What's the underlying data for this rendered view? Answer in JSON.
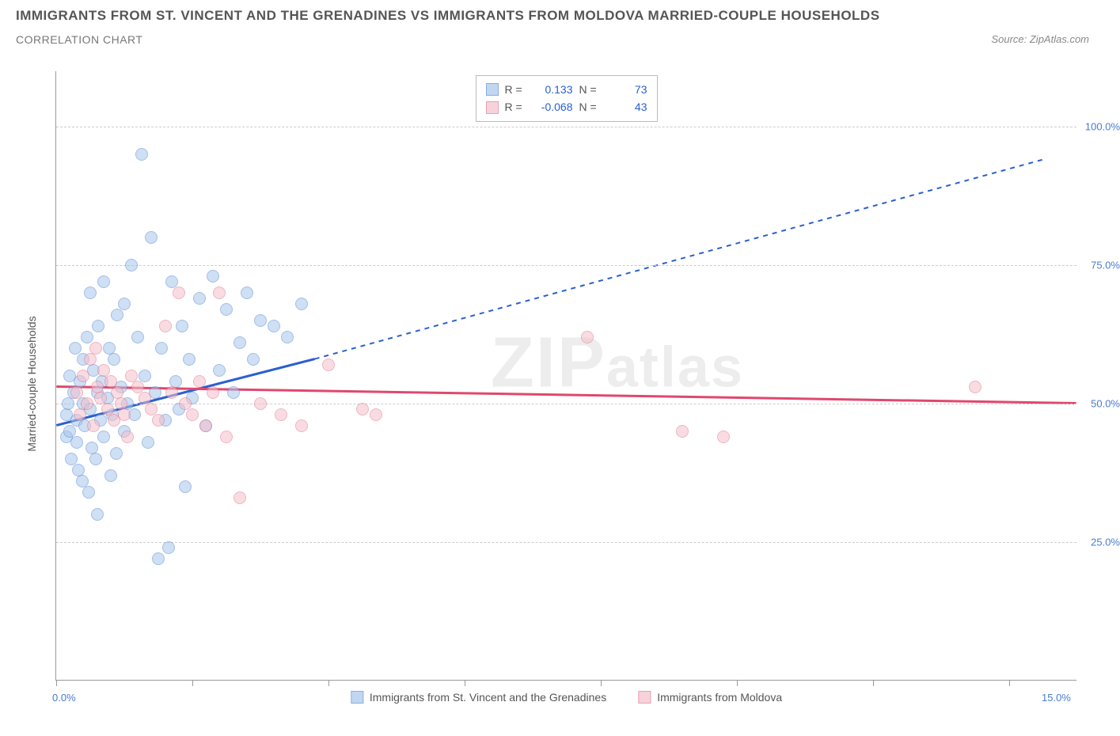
{
  "title": "IMMIGRANTS FROM ST. VINCENT AND THE GRENADINES VS IMMIGRANTS FROM MOLDOVA MARRIED-COUPLE HOUSEHOLDS",
  "subtitle": "CORRELATION CHART",
  "source": "Source: ZipAtlas.com",
  "watermark": "ZIPatlas",
  "y_axis_title": "Married-couple Households",
  "chart": {
    "type": "scatter",
    "xlim": [
      0,
      15
    ],
    "ylim": [
      0,
      110
    ],
    "x_ticks": [
      0,
      2,
      4,
      6,
      8,
      10,
      12,
      14
    ],
    "x_tick_labels": {
      "0": "0.0%",
      "15": "15.0%"
    },
    "y_gridlines": [
      25,
      50,
      75,
      100
    ],
    "y_tick_labels": {
      "25": "25.0%",
      "50": "50.0%",
      "75": "75.0%",
      "100": "100.0%"
    },
    "background_color": "#ffffff",
    "grid_color": "#cccccc",
    "axis_label_color": "#4a7bd0",
    "series": [
      {
        "name": "Immigrants from St. Vincent and the Grenadines",
        "short": "svg_series",
        "fill": "#a8c5ec",
        "stroke": "#5a8cd4",
        "fill_opacity": 0.55,
        "R": "0.133",
        "N": "73",
        "marker_radius": 8,
        "trend": {
          "solid": {
            "x1": 0,
            "y1": 46,
            "x2": 3.8,
            "y2": 58
          },
          "dashed": {
            "x1": 3.8,
            "y1": 58,
            "x2": 14.5,
            "y2": 94
          },
          "color": "#2a5fd0",
          "width": 2
        },
        "points": [
          [
            0.15,
            44
          ],
          [
            0.15,
            48
          ],
          [
            0.18,
            50
          ],
          [
            0.2,
            45
          ],
          [
            0.2,
            55
          ],
          [
            0.22,
            40
          ],
          [
            0.25,
            52
          ],
          [
            0.28,
            60
          ],
          [
            0.3,
            43
          ],
          [
            0.3,
            47
          ],
          [
            0.32,
            38
          ],
          [
            0.35,
            54
          ],
          [
            0.38,
            36
          ],
          [
            0.4,
            50
          ],
          [
            0.4,
            58
          ],
          [
            0.42,
            46
          ],
          [
            0.45,
            62
          ],
          [
            0.48,
            34
          ],
          [
            0.5,
            49
          ],
          [
            0.5,
            70
          ],
          [
            0.52,
            42
          ],
          [
            0.55,
            56
          ],
          [
            0.58,
            40
          ],
          [
            0.6,
            52
          ],
          [
            0.6,
            30
          ],
          [
            0.62,
            64
          ],
          [
            0.65,
            47
          ],
          [
            0.68,
            54
          ],
          [
            0.7,
            44
          ],
          [
            0.7,
            72
          ],
          [
            0.75,
            51
          ],
          [
            0.78,
            60
          ],
          [
            0.8,
            37
          ],
          [
            0.82,
            48
          ],
          [
            0.85,
            58
          ],
          [
            0.88,
            41
          ],
          [
            0.9,
            66
          ],
          [
            0.95,
            53
          ],
          [
            1.0,
            45
          ],
          [
            1.0,
            68
          ],
          [
            1.05,
            50
          ],
          [
            1.1,
            75
          ],
          [
            1.15,
            48
          ],
          [
            1.2,
            62
          ],
          [
            1.25,
            95
          ],
          [
            1.3,
            55
          ],
          [
            1.35,
            43
          ],
          [
            1.4,
            80
          ],
          [
            1.45,
            52
          ],
          [
            1.5,
            22
          ],
          [
            1.55,
            60
          ],
          [
            1.6,
            47
          ],
          [
            1.65,
            24
          ],
          [
            1.7,
            72
          ],
          [
            1.75,
            54
          ],
          [
            1.8,
            49
          ],
          [
            1.85,
            64
          ],
          [
            1.9,
            35
          ],
          [
            1.95,
            58
          ],
          [
            2.0,
            51
          ],
          [
            2.1,
            69
          ],
          [
            2.2,
            46
          ],
          [
            2.3,
            73
          ],
          [
            2.4,
            56
          ],
          [
            2.5,
            67
          ],
          [
            2.6,
            52
          ],
          [
            2.7,
            61
          ],
          [
            2.8,
            70
          ],
          [
            2.9,
            58
          ],
          [
            3.0,
            65
          ],
          [
            3.2,
            64
          ],
          [
            3.4,
            62
          ],
          [
            3.6,
            68
          ]
        ]
      },
      {
        "name": "Immigrants from Moldova",
        "short": "moldova_series",
        "fill": "#f4c0cb",
        "stroke": "#e27a92",
        "fill_opacity": 0.55,
        "R": "-0.068",
        "N": "43",
        "marker_radius": 8,
        "trend": {
          "solid": {
            "x1": 0,
            "y1": 53,
            "x2": 15,
            "y2": 50
          },
          "dashed": null,
          "color": "#e0486d",
          "width": 2
        },
        "points": [
          [
            0.3,
            52
          ],
          [
            0.35,
            48
          ],
          [
            0.4,
            55
          ],
          [
            0.45,
            50
          ],
          [
            0.5,
            58
          ],
          [
            0.55,
            46
          ],
          [
            0.6,
            53
          ],
          [
            0.65,
            51
          ],
          [
            0.7,
            56
          ],
          [
            0.75,
            49
          ],
          [
            0.8,
            54
          ],
          [
            0.85,
            47
          ],
          [
            0.9,
            52
          ],
          [
            0.95,
            50
          ],
          [
            1.0,
            48
          ],
          [
            1.1,
            55
          ],
          [
            1.2,
            53
          ],
          [
            1.3,
            51
          ],
          [
            1.4,
            49
          ],
          [
            1.5,
            47
          ],
          [
            1.6,
            64
          ],
          [
            1.7,
            52
          ],
          [
            1.8,
            70
          ],
          [
            1.9,
            50
          ],
          [
            2.0,
            48
          ],
          [
            2.1,
            54
          ],
          [
            2.2,
            46
          ],
          [
            2.3,
            52
          ],
          [
            2.4,
            70
          ],
          [
            2.5,
            44
          ],
          [
            2.7,
            33
          ],
          [
            3.0,
            50
          ],
          [
            3.3,
            48
          ],
          [
            3.6,
            46
          ],
          [
            4.0,
            57
          ],
          [
            4.5,
            49
          ],
          [
            4.7,
            48
          ],
          [
            7.8,
            62
          ],
          [
            9.2,
            45
          ],
          [
            9.8,
            44
          ],
          [
            13.5,
            53
          ],
          [
            1.05,
            44
          ],
          [
            0.58,
            60
          ]
        ]
      }
    ]
  }
}
